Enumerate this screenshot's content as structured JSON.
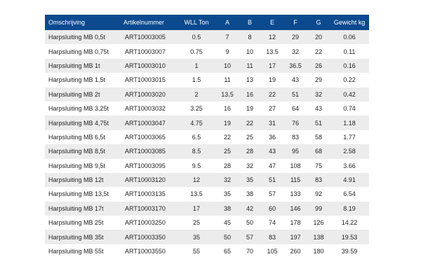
{
  "table": {
    "headers": [
      "Omschrijving",
      "Artikelnummer",
      "WLL Ton",
      "A",
      "B",
      "E",
      "F",
      "G",
      "Gewicht kg"
    ],
    "rows": [
      [
        "Harpsluiting MB 0,5t",
        "ART10003005",
        "0.5",
        "7",
        "8",
        "12",
        "29",
        "20",
        "0.06"
      ],
      [
        "Harpsluiting MB 0,75t",
        "ART10003007",
        "0.75",
        "9",
        "10",
        "13.5",
        "32",
        "22",
        "0.11"
      ],
      [
        "Harpsluiting MB 1t",
        "ART10003010",
        "1",
        "10",
        "11",
        "17",
        "36.5",
        "26",
        "0.16"
      ],
      [
        "Harpsluiting MB 1,5t",
        "ART10003015",
        "1.5",
        "11",
        "13",
        "19",
        "43",
        "29",
        "0.22"
      ],
      [
        "Harpsluiting MB 2t",
        "ART10003020",
        "2",
        "13.5",
        "16",
        "22",
        "51",
        "32",
        "0.42"
      ],
      [
        "Harpsluiting MB 3,25t",
        "ART10003032",
        "3.25",
        "16",
        "19",
        "27",
        "64",
        "43",
        "0.74"
      ],
      [
        "Harpsluiting MB 4,75t",
        "ART10003047",
        "4.75",
        "19",
        "22",
        "31",
        "76",
        "51",
        "1.18"
      ],
      [
        "Harpsluiting MB 6,5t",
        "ART10003065",
        "6.5",
        "22",
        "25",
        "36",
        "83",
        "58",
        "1.77"
      ],
      [
        "Harpsluiting MB 8,5t",
        "ART10003085",
        "8.5",
        "25",
        "28",
        "43",
        "95",
        "68",
        "2.58"
      ],
      [
        "Harpsluiting MB 9,5t",
        "ART10003095",
        "9.5",
        "28",
        "32",
        "47",
        "108",
        "75",
        "3.66"
      ],
      [
        "Harpsluiting MB 12t",
        "ART10003120",
        "12",
        "32",
        "35",
        "51",
        "115",
        "83",
        "4.91"
      ],
      [
        "Harpsluiting MB 13,5t",
        "ART10003135",
        "13.5",
        "35",
        "38",
        "57",
        "133",
        "92",
        "6.54"
      ],
      [
        "Harpsluiting MB 17t",
        "ART10003170",
        "17",
        "38",
        "42",
        "60",
        "146",
        "99",
        "8.19"
      ],
      [
        "Harpsluiting MB 25t",
        "ART10003250",
        "25",
        "45",
        "50",
        "74",
        "178",
        "126",
        "14.22"
      ],
      [
        "Harpsluiting MB 35t",
        "ART10003350",
        "35",
        "50",
        "57",
        "83",
        "197",
        "138",
        "19.53"
      ],
      [
        "Harpsluiting MB 55t",
        "ART10003550",
        "55",
        "65",
        "70",
        "105",
        "260",
        "180",
        "39.59"
      ]
    ]
  },
  "colors": {
    "header_bg": "#0b4a8f",
    "header_text": "#ffffff",
    "row_stripe": "#ececec",
    "row_plain": "#ffffff"
  }
}
